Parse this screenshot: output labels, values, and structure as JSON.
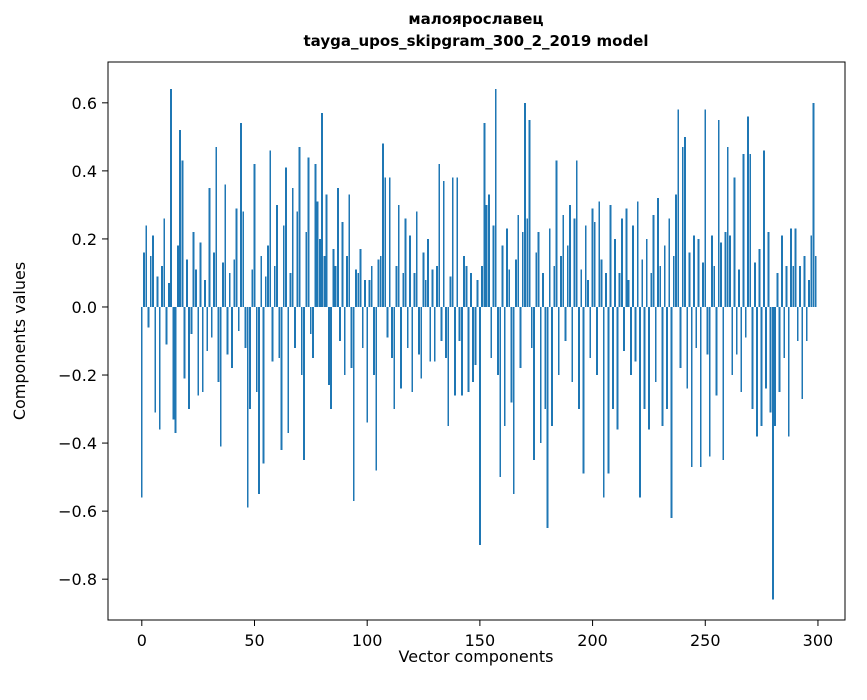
{
  "figure": {
    "title_line1": "малоярославец",
    "title_line2": "tayga_upos_skipgram_300_2_2019 model",
    "xlabel": "Vector components",
    "ylabel": "Components values"
  },
  "chart_data": {
    "type": "bar",
    "title": "малоярославец — tayga_upos_skipgram_300_2_2019 model",
    "xlabel": "Vector components",
    "ylabel": "Components values",
    "bar_color": "#1f77b4",
    "grid": false,
    "legend": "none",
    "x_ticks": [
      0,
      50,
      100,
      150,
      200,
      250,
      300
    ],
    "y_ticks": [
      0.6,
      0.4,
      0.2,
      0.0,
      -0.2,
      -0.4,
      -0.6,
      -0.8
    ],
    "xlim": [
      -15,
      312
    ],
    "ylim": [
      -0.92,
      0.72
    ],
    "values": [
      -0.56,
      0.16,
      0.24,
      -0.06,
      0.15,
      0.21,
      -0.31,
      0.09,
      -0.36,
      0.12,
      0.26,
      -0.11,
      0.07,
      0.64,
      -0.33,
      -0.37,
      0.18,
      0.52,
      0.43,
      -0.21,
      0.14,
      -0.3,
      -0.08,
      0.22,
      0.11,
      -0.26,
      0.19,
      -0.25,
      0.08,
      -0.13,
      0.35,
      -0.09,
      0.16,
      0.47,
      -0.22,
      -0.41,
      0.13,
      0.36,
      -0.14,
      0.1,
      -0.18,
      0.14,
      0.29,
      -0.07,
      0.54,
      0.28,
      -0.12,
      -0.59,
      -0.3,
      0.11,
      0.42,
      -0.25,
      -0.55,
      0.15,
      -0.46,
      0.09,
      0.18,
      0.46,
      -0.16,
      0.12,
      0.3,
      -0.15,
      -0.42,
      0.24,
      0.41,
      -0.37,
      0.1,
      0.35,
      -0.12,
      0.28,
      0.47,
      -0.2,
      -0.45,
      0.22,
      0.44,
      -0.08,
      -0.15,
      0.42,
      0.31,
      0.2,
      0.57,
      0.15,
      0.33,
      -0.23,
      -0.3,
      0.17,
      0.12,
      0.35,
      -0.1,
      0.25,
      -0.2,
      0.15,
      0.33,
      -0.18,
      -0.57,
      0.11,
      0.1,
      0.17,
      -0.12,
      0.08,
      -0.34,
      0.08,
      0.12,
      -0.2,
      -0.48,
      0.14,
      0.15,
      0.48,
      0.38,
      -0.09,
      0.38,
      -0.15,
      -0.3,
      0.12,
      0.3,
      -0.24,
      0.1,
      0.26,
      -0.12,
      0.21,
      -0.25,
      0.1,
      0.28,
      -0.14,
      -0.21,
      0.16,
      0.08,
      0.2,
      -0.16,
      0.11,
      -0.16,
      0.12,
      0.42,
      -0.1,
      0.37,
      -0.15,
      -0.35,
      0.09,
      0.38,
      -0.26,
      0.38,
      -0.1,
      -0.26,
      0.15,
      0.12,
      -0.25,
      0.1,
      -0.22,
      -0.17,
      0.08,
      -0.7,
      0.12,
      0.54,
      0.3,
      0.33,
      -0.15,
      0.24,
      0.64,
      -0.2,
      -0.5,
      0.18,
      -0.35,
      0.23,
      0.11,
      -0.28,
      -0.55,
      0.14,
      0.27,
      -0.18,
      0.22,
      0.6,
      0.26,
      0.55,
      -0.12,
      -0.45,
      0.16,
      0.22,
      -0.4,
      0.1,
      -0.3,
      -0.65,
      0.23,
      -0.35,
      0.12,
      0.43,
      -0.2,
      0.15,
      0.27,
      -0.1,
      0.18,
      0.3,
      -0.22,
      0.26,
      0.43,
      -0.3,
      0.11,
      -0.49,
      0.24,
      0.08,
      -0.15,
      0.29,
      0.25,
      -0.2,
      0.31,
      0.14,
      -0.56,
      0.1,
      -0.49,
      0.3,
      -0.3,
      0.2,
      -0.36,
      0.1,
      0.26,
      -0.13,
      0.29,
      0.08,
      -0.2,
      0.24,
      -0.16,
      0.31,
      -0.56,
      0.14,
      -0.3,
      0.2,
      -0.36,
      0.1,
      0.27,
      -0.22,
      0.32,
      0.12,
      -0.35,
      0.18,
      -0.3,
      0.26,
      -0.62,
      0.15,
      0.33,
      0.58,
      -0.18,
      0.47,
      0.5,
      -0.24,
      0.16,
      -0.47,
      0.21,
      -0.12,
      0.2,
      -0.47,
      0.13,
      0.58,
      -0.14,
      -0.44,
      0.21,
      0.12,
      -0.26,
      0.55,
      0.19,
      -0.45,
      0.22,
      0.47,
      0.21,
      -0.2,
      0.38,
      -0.14,
      0.11,
      -0.25,
      0.45,
      -0.09,
      0.56,
      0.45,
      -0.3,
      0.13,
      -0.38,
      0.17,
      -0.35,
      0.46,
      -0.24,
      0.22,
      -0.31,
      -0.86,
      -0.35,
      0.1,
      -0.25,
      0.21,
      -0.15,
      0.12,
      -0.38,
      0.23,
      0.12,
      0.23,
      -0.1,
      0.12,
      -0.27,
      0.15,
      -0.1,
      0.08,
      0.21,
      0.6,
      0.15
    ]
  }
}
